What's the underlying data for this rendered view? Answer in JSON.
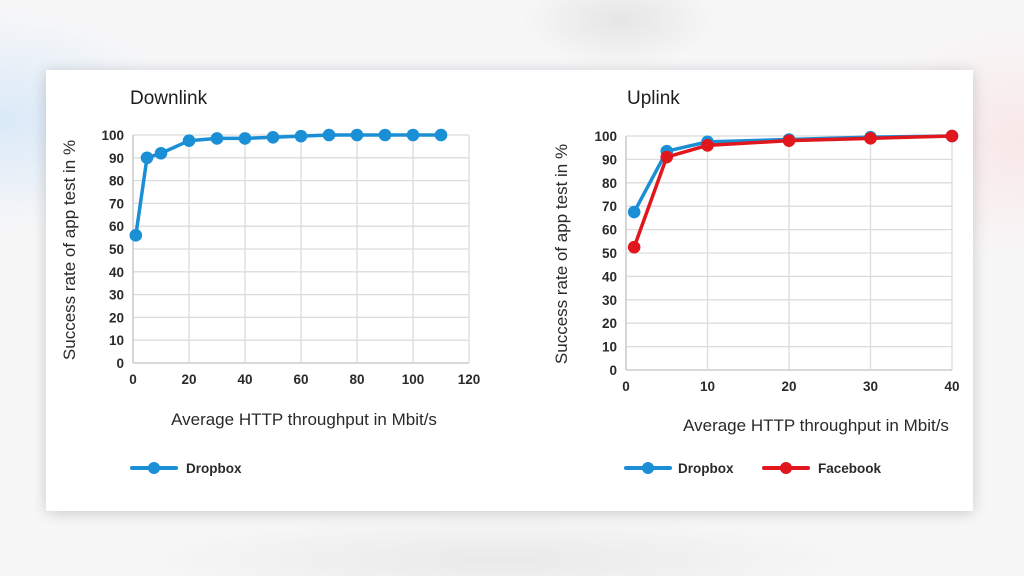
{
  "chart_data": [
    {
      "type": "line",
      "title": "Downlink",
      "xlabel": "Average HTTP throughput in Mbit/s",
      "ylabel": "Success rate of app test  in %",
      "xlim": [
        0,
        120
      ],
      "ylim": [
        0,
        100
      ],
      "xticks": [
        0,
        20,
        40,
        60,
        80,
        100,
        120
      ],
      "yticks": [
        0,
        10,
        20,
        30,
        40,
        50,
        60,
        70,
        80,
        90,
        100
      ],
      "grid": true,
      "legend_position": "bottom-left",
      "series": [
        {
          "name": "Dropbox",
          "color": "#1a8fd6",
          "x": [
            1,
            5,
            10,
            20,
            30,
            40,
            50,
            60,
            70,
            80,
            90,
            100,
            110
          ],
          "values": [
            56,
            90,
            92,
            97.5,
            98.5,
            98.5,
            99,
            99.5,
            100,
            100,
            100,
            100,
            100
          ]
        }
      ]
    },
    {
      "type": "line",
      "title": "Uplink",
      "xlabel": "Average HTTP throughput in Mbit/s",
      "ylabel": "Success rate of app test in %",
      "xlim": [
        0,
        40
      ],
      "ylim": [
        0,
        100
      ],
      "xticks": [
        0,
        10,
        20,
        30,
        40
      ],
      "yticks": [
        0,
        10,
        20,
        30,
        40,
        50,
        60,
        70,
        80,
        90,
        100
      ],
      "grid": true,
      "legend_position": "bottom-left",
      "series": [
        {
          "name": "Dropbox",
          "color": "#1a8fd6",
          "x": [
            1,
            5,
            10,
            20,
            30,
            40
          ],
          "values": [
            67.5,
            93.5,
            97.5,
            98.5,
            99.5,
            100
          ]
        },
        {
          "name": "Facebook",
          "color": "#e0171c",
          "x": [
            1,
            5,
            10,
            20,
            30,
            40
          ],
          "values": [
            52.5,
            91,
            96,
            98,
            99,
            100
          ]
        }
      ]
    }
  ],
  "panels": [
    {
      "title": "Downlink",
      "xlabel": "Average HTTP throughput in Mbit/s",
      "ylabel": "Success rate of app test  in %",
      "legend": [
        "Dropbox"
      ]
    },
    {
      "title": "Uplink",
      "xlabel": "Average HTTP throughput in Mbit/s",
      "ylabel": "Success rate of app test in %",
      "legend": [
        "Dropbox",
        "Facebook"
      ]
    }
  ]
}
